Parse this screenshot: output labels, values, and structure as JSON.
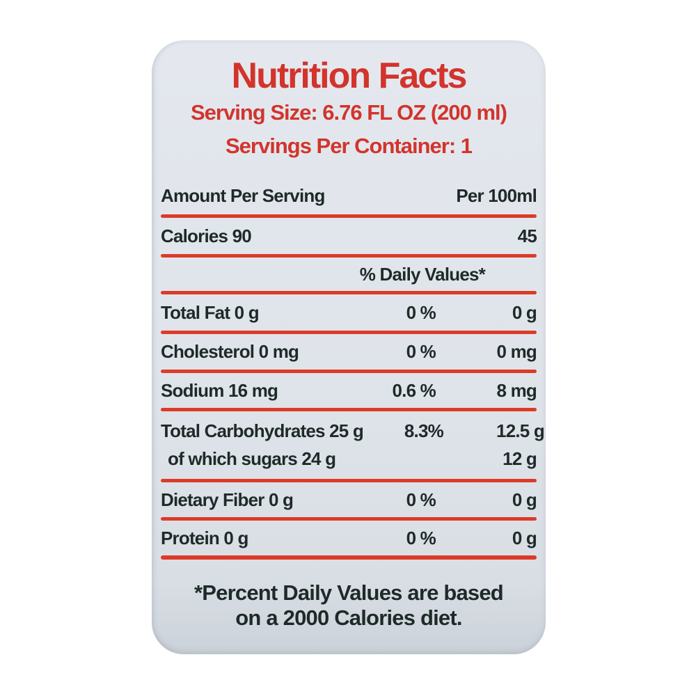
{
  "label": {
    "title": "Nutrition Facts",
    "serving_size": "Serving Size: 6.76 FL OZ (200 ml)",
    "servings_per_container": "Servings Per Container: 1",
    "table": {
      "amount_header": "Amount Per Serving",
      "per100_header": "Per 100ml",
      "calories": {
        "name": "Calories 90",
        "per100": "45"
      },
      "daily_values_header": "% Daily Values*",
      "rows": [
        {
          "name": "Total Fat 0 g",
          "dv": "0 %",
          "per100": "0 g"
        },
        {
          "name": "Cholesterol 0 mg",
          "dv": "0 %",
          "per100": "0 mg"
        },
        {
          "name": "Sodium 16 mg",
          "dv": "0.6 %",
          "per100": "8 mg"
        },
        {
          "name": "Total Carbohydrates 25 g",
          "dv": "8.3%",
          "per100": "12.5 g",
          "sub_name": "of which sugars 24 g",
          "sub_per100": "12 g"
        },
        {
          "name": "Dietary Fiber 0 g",
          "dv": "0 %",
          "per100": "0 g"
        },
        {
          "name": "Protein 0 g",
          "dv": "0 %",
          "per100": "0 g"
        }
      ]
    },
    "footnote_line1": "*Percent Daily Values are based",
    "footnote_line2": "on a 2000 Calories diet.",
    "colors": {
      "accent_red": "#d2342c",
      "rule_red": "#dd3a28",
      "text_black": "#1e2a28",
      "label_background": "#dfe4ea",
      "page_background": "#ffffff"
    }
  }
}
